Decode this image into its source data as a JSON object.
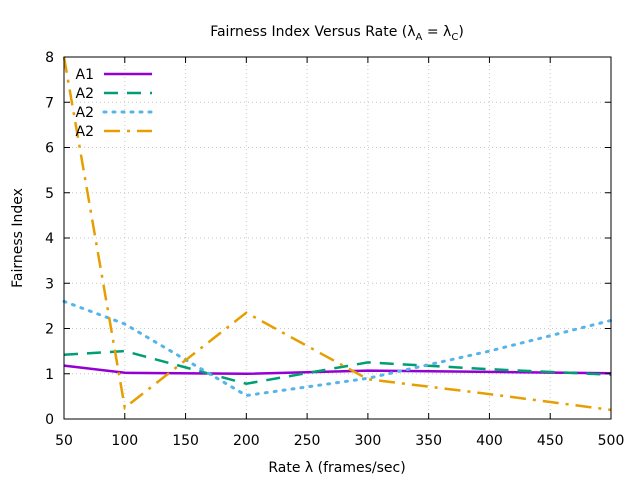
{
  "chart_data": {
    "type": "line",
    "title": {
      "main": "Fairness Index Versus Rate (",
      "lambda": "λ",
      "sub_a": "A",
      "equals": " = ",
      "sub_c": "C",
      "close": ")"
    },
    "xlabel": "Rate λ (frames/sec)",
    "ylabel": "Fairness Index",
    "xlim": [
      50,
      500
    ],
    "ylim": [
      0,
      8
    ],
    "x_ticks": [
      "50",
      "100",
      "150",
      "200",
      "250",
      "300",
      "350",
      "400",
      "450",
      "500"
    ],
    "y_ticks": [
      "0",
      "1",
      "2",
      "3",
      "4",
      "5",
      "6",
      "7",
      "8"
    ],
    "grid": true,
    "legend_position": "top-left",
    "x": [
      50,
      100,
      200,
      300,
      400,
      500
    ],
    "series": [
      {
        "name": "A1",
        "color": "#9400d3",
        "style": "solid",
        "values": [
          1.18,
          1.02,
          1.0,
          1.07,
          1.04,
          1.01
        ]
      },
      {
        "name": "A2",
        "color": "#009e73",
        "style": "dashed",
        "values": [
          1.42,
          1.5,
          0.78,
          1.25,
          1.1,
          0.98
        ]
      },
      {
        "name": "A2",
        "color": "#56b4e9",
        "style": "dotted",
        "values": [
          2.6,
          2.1,
          0.52,
          0.9,
          1.5,
          2.18
        ]
      },
      {
        "name": "A2",
        "color": "#e69f00",
        "style": "dash-dot",
        "values": [
          8.0,
          0.25,
          2.35,
          0.88,
          0.55,
          0.2
        ]
      }
    ]
  }
}
